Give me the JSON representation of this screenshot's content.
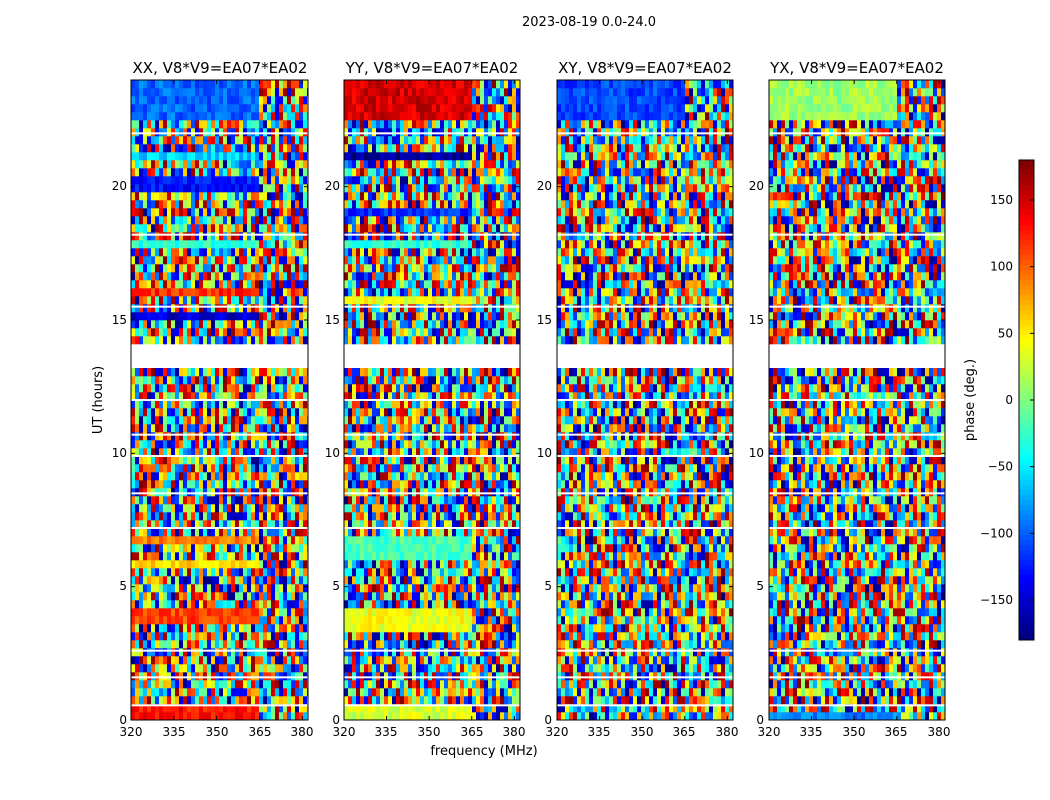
{
  "figure_title": "2023-08-19 0.0-24.0",
  "chart_data": {
    "type": "heatmap",
    "xlabel": "frequency (MHz)",
    "ylabel": "UT (hours)",
    "xlim": [
      320,
      382
    ],
    "ylim": [
      0,
      24
    ],
    "x_ticks": [
      320,
      335,
      350,
      365,
      380
    ],
    "y_ticks": [
      0,
      5,
      10,
      15,
      20
    ],
    "colorbar": {
      "label": "phase (deg.)",
      "range": [
        -180,
        180
      ],
      "ticks": [
        150,
        100,
        50,
        0,
        -50,
        -100,
        -150
      ],
      "tick_labels": [
        "150",
        "100",
        "50",
        "0",
        "−50",
        "−100",
        "−150"
      ],
      "colormap": "jet"
    },
    "gaps_hours": [
      [
        13.1,
        14.1
      ],
      [
        23.0,
        23.1
      ],
      [
        0.55,
        0.6
      ]
    ],
    "panels": [
      {
        "title": "XX, V8*V9=EA07*EA02",
        "coherent_bands": [
          {
            "t0": 22.4,
            "t1": 23.9,
            "phase": -100
          },
          {
            "t0": 21.0,
            "t1": 21.2,
            "phase": -60
          },
          {
            "t0": 19.8,
            "t1": 20.3,
            "phase": -130
          },
          {
            "t0": 18.8,
            "t1": 19.0,
            "phase": -50
          },
          {
            "t0": 17.8,
            "t1": 18.1,
            "phase": -30
          },
          {
            "t0": 15.9,
            "t1": 16.1,
            "phase": 120
          },
          {
            "t0": 15.0,
            "t1": 15.4,
            "phase": -150
          },
          {
            "t0": 6.6,
            "t1": 6.9,
            "phase": 90
          },
          {
            "t0": 5.8,
            "t1": 6.0,
            "phase": 60
          },
          {
            "t0": 3.5,
            "t1": 4.2,
            "phase": 110
          },
          {
            "t0": 0.1,
            "t1": 0.45,
            "phase": 130
          }
        ]
      },
      {
        "title": "YY, V8*V9=EA07*EA02",
        "coherent_bands": [
          {
            "t0": 22.4,
            "t1": 23.9,
            "phase": 150
          },
          {
            "t0": 20.9,
            "t1": 21.2,
            "phase": -170
          },
          {
            "t0": 18.8,
            "t1": 19.1,
            "phase": -120
          },
          {
            "t0": 17.8,
            "t1": 18.1,
            "phase": -30
          },
          {
            "t0": 15.7,
            "t1": 16.0,
            "phase": 40
          },
          {
            "t0": 6.0,
            "t1": 7.0,
            "phase": -20
          },
          {
            "t0": 3.4,
            "t1": 4.2,
            "phase": 40
          },
          {
            "t0": 0.1,
            "t1": 0.45,
            "phase": 30
          }
        ]
      },
      {
        "title": "XY, V8*V9=EA07*EA02",
        "coherent_bands": [
          {
            "t0": 22.6,
            "t1": 23.9,
            "phase": -110
          }
        ]
      },
      {
        "title": "YX, V8*V9=EA07*EA02",
        "coherent_bands": [
          {
            "t0": 22.4,
            "t1": 23.9,
            "phase": 10
          },
          {
            "t0": 0.1,
            "t1": 0.4,
            "phase": -90
          }
        ]
      }
    ]
  }
}
